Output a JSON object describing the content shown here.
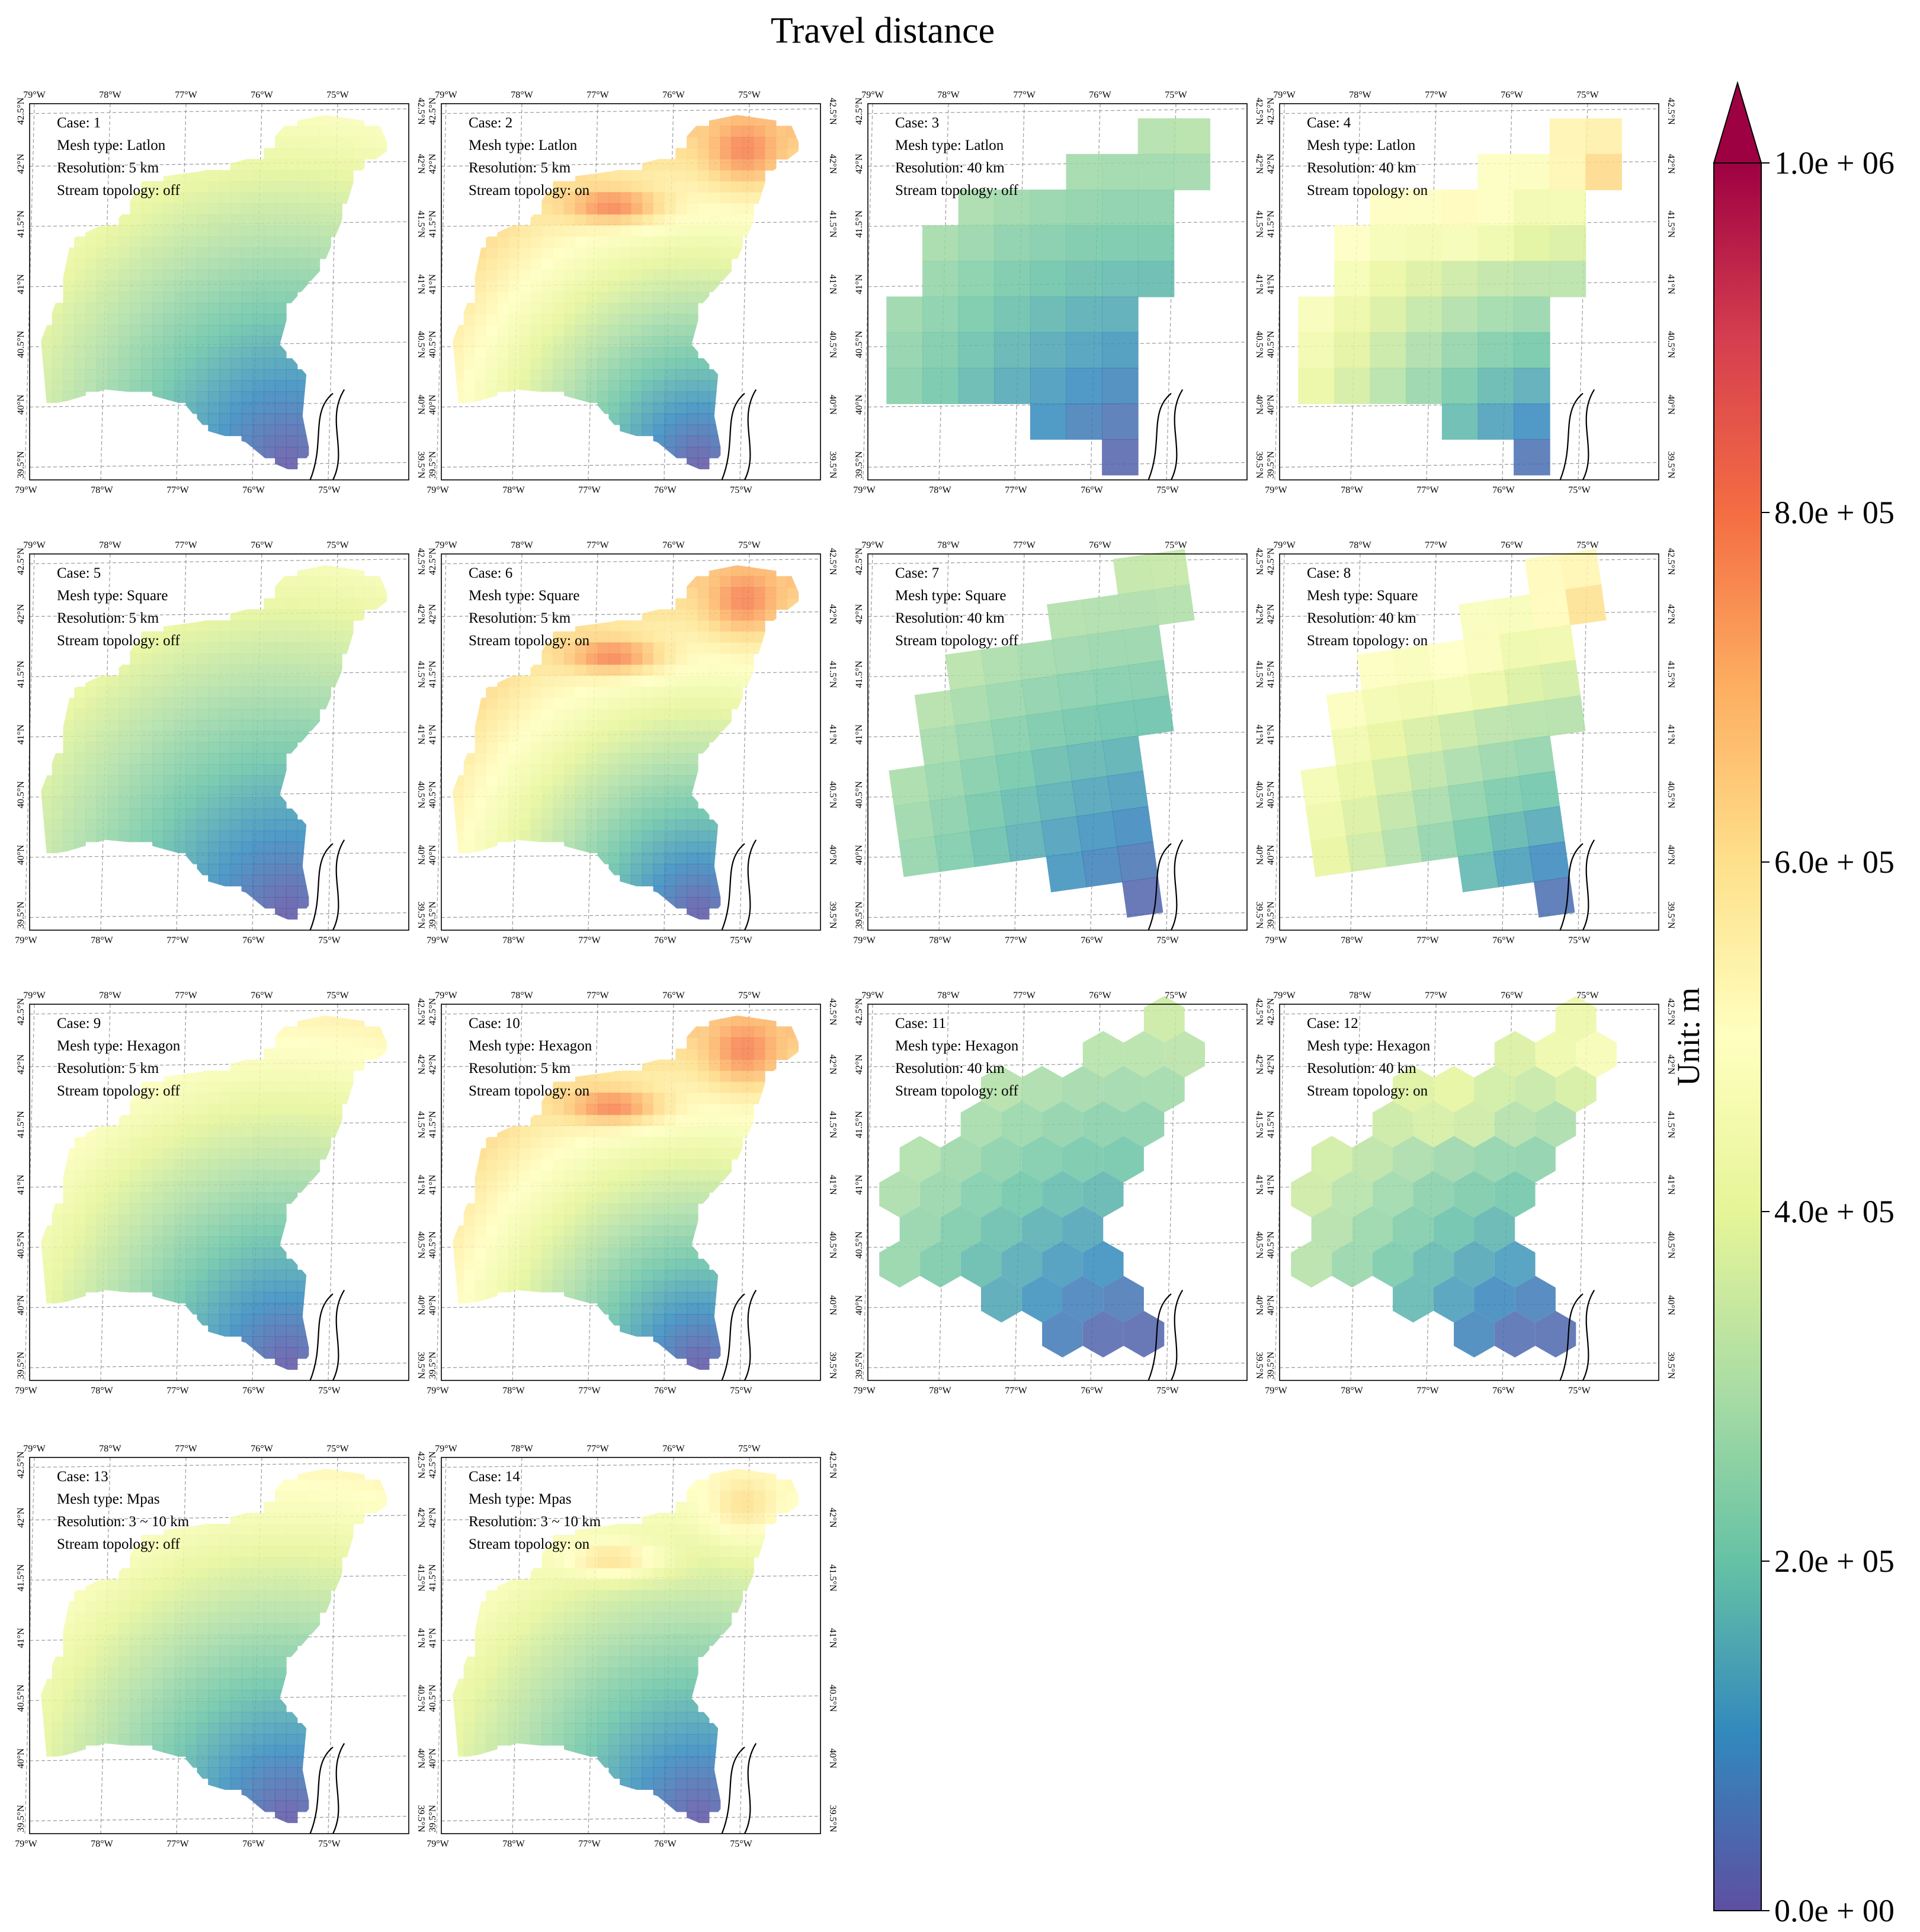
{
  "title": "Travel distance",
  "colorbar": {
    "label": "Unit: m",
    "ticks": [
      "0.0e + 00",
      "2.0e + 05",
      "4.0e + 05",
      "6.0e + 05",
      "8.0e + 05",
      "1.0e + 06"
    ],
    "min": 0,
    "max": 1000000,
    "extend": "max",
    "colormap": "Spectral_r",
    "stops": [
      "#5e4fa2",
      "#3288bd",
      "#66c2a5",
      "#abdda4",
      "#e6f598",
      "#ffffbf",
      "#fee08b",
      "#fdae61",
      "#f46d43",
      "#d53e4f",
      "#9e0142"
    ]
  },
  "legend_labels": {
    "case": "Case:",
    "mesh": "Mesh type:",
    "resolution": "Resolution:",
    "topology": "Stream topology:"
  },
  "axes": {
    "lon_ticks": [
      "79°W",
      "78°W",
      "77°W",
      "76°W",
      "75°W"
    ],
    "lat_ticks": [
      "39.5°N",
      "40°N",
      "40.5°N",
      "41°N",
      "41.5°N",
      "42°N",
      "42.5°N",
      "43°N"
    ],
    "lon_range": [
      -79.2,
      -74.2
    ],
    "lat_range": [
      39.5,
      43.0
    ],
    "grid": true
  },
  "chart_data": {
    "type": "heatmap",
    "title": "Travel distance",
    "value_range": [
      0,
      1000000
    ],
    "unit": "m",
    "panels": [
      {
        "case": 1,
        "mesh": "Latlon",
        "resolution": "5 km",
        "topology": "off",
        "max_travel_m": 540000
      },
      {
        "case": 2,
        "mesh": "Latlon",
        "resolution": "5 km",
        "topology": "on",
        "max_travel_m": 780000
      },
      {
        "case": 3,
        "mesh": "Latlon",
        "resolution": "40 km",
        "topology": "off",
        "max_travel_m": 350000
      },
      {
        "case": 4,
        "mesh": "Latlon",
        "resolution": "40 km",
        "topology": "on",
        "max_travel_m": 620000
      },
      {
        "case": 5,
        "mesh": "Square",
        "resolution": "5 km",
        "topology": "off",
        "max_travel_m": 520000
      },
      {
        "case": 6,
        "mesh": "Square",
        "resolution": "5 km",
        "topology": "on",
        "max_travel_m": 780000
      },
      {
        "case": 7,
        "mesh": "Square",
        "resolution": "40 km",
        "topology": "off",
        "max_travel_m": 380000
      },
      {
        "case": 8,
        "mesh": "Square",
        "resolution": "40 km",
        "topology": "on",
        "max_travel_m": 600000
      },
      {
        "case": 9,
        "mesh": "Hexagon",
        "resolution": "5 km",
        "topology": "off",
        "max_travel_m": 620000
      },
      {
        "case": 10,
        "mesh": "Hexagon",
        "resolution": "5 km",
        "topology": "on",
        "max_travel_m": 780000
      },
      {
        "case": 11,
        "mesh": "Hexagon",
        "resolution": "40 km",
        "topology": "off",
        "max_travel_m": 400000
      },
      {
        "case": 12,
        "mesh": "Hexagon",
        "resolution": "40 km",
        "topology": "on",
        "max_travel_m": 480000
      },
      {
        "case": 13,
        "mesh": "Mpas",
        "resolution": "3 ~ 10 km",
        "topology": "off",
        "max_travel_m": 600000
      },
      {
        "case": 14,
        "mesh": "Mpas",
        "resolution": "3 ~ 10 km",
        "topology": "on",
        "max_travel_m": 600000
      }
    ]
  }
}
